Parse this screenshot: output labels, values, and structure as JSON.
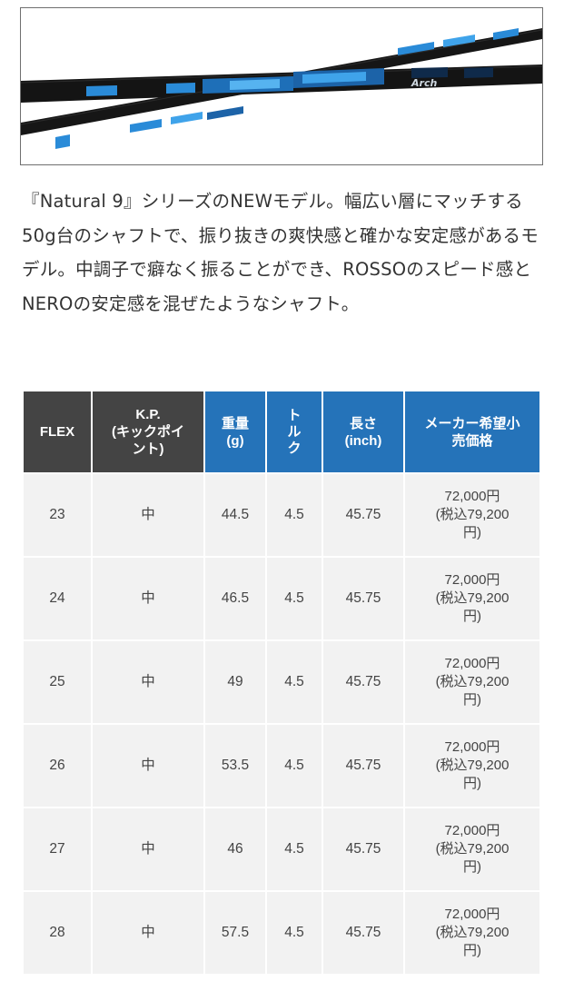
{
  "description": "『Natural 9』シリーズのNEWモデル。幅広い層にマッチする50g台のシャフトで、振り抜きの爽快感と確かな安定感があるモデル。中調子で癖なく振ることができ、ROSSOのスピード感とNEROの安定感を混ぜたようなシャフト。",
  "table": {
    "headers": {
      "flex": "FLEX",
      "kp": "K.P.\n(キックポイント)",
      "weight": "重量\n(g)",
      "torque": "トルク",
      "length": "長さ\n(inch)",
      "price": "メーカー希望小売価格"
    },
    "rows": [
      {
        "flex": "23",
        "kp": "中",
        "weight": "44.5",
        "torque": "4.5",
        "length": "45.75",
        "price": "72,000円\n(税込79,200円)"
      },
      {
        "flex": "24",
        "kp": "中",
        "weight": "46.5",
        "torque": "4.5",
        "length": "45.75",
        "price": "72,000円\n(税込79,200円)"
      },
      {
        "flex": "25",
        "kp": "中",
        "weight": "49",
        "torque": "4.5",
        "length": "45.75",
        "price": "72,000円\n(税込79,200円)"
      },
      {
        "flex": "26",
        "kp": "中",
        "weight": "53.5",
        "torque": "4.5",
        "length": "45.75",
        "price": "72,000円\n(税込79,200円)"
      },
      {
        "flex": "27",
        "kp": "中",
        "weight": "46",
        "torque": "4.5",
        "length": "45.75",
        "price": "72,000円\n(税込79,200円)"
      },
      {
        "flex": "28",
        "kp": "中",
        "weight": "57.5",
        "torque": "4.5",
        "length": "45.75",
        "price": "72,000円\n(税込79,200円)"
      }
    ]
  },
  "colors": {
    "header_dark": "#444444",
    "header_blue": "#2573b9",
    "cell_bg": "#f2f2f2",
    "shaft_black": "#141414",
    "shaft_blue": "#2a8bd8"
  },
  "hero_logo_text": "Arch"
}
